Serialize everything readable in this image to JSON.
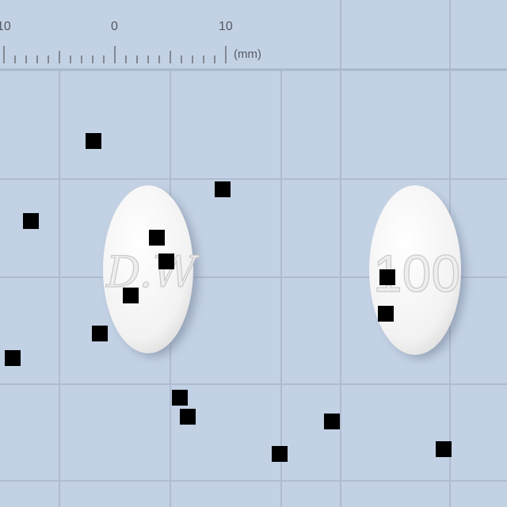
{
  "ruler": {
    "labels": [
      "10",
      "0",
      "10"
    ],
    "unit": "(mm)"
  },
  "pills": [
    {
      "imprint": "D.W",
      "color": "#f7f7f7"
    },
    {
      "imprint": "100",
      "color": "#f7f7f7"
    }
  ],
  "colors": {
    "background": "#c3d1e4",
    "grid": "#aebbd0",
    "pill": "#f4f4f4",
    "marker": "#000000"
  }
}
